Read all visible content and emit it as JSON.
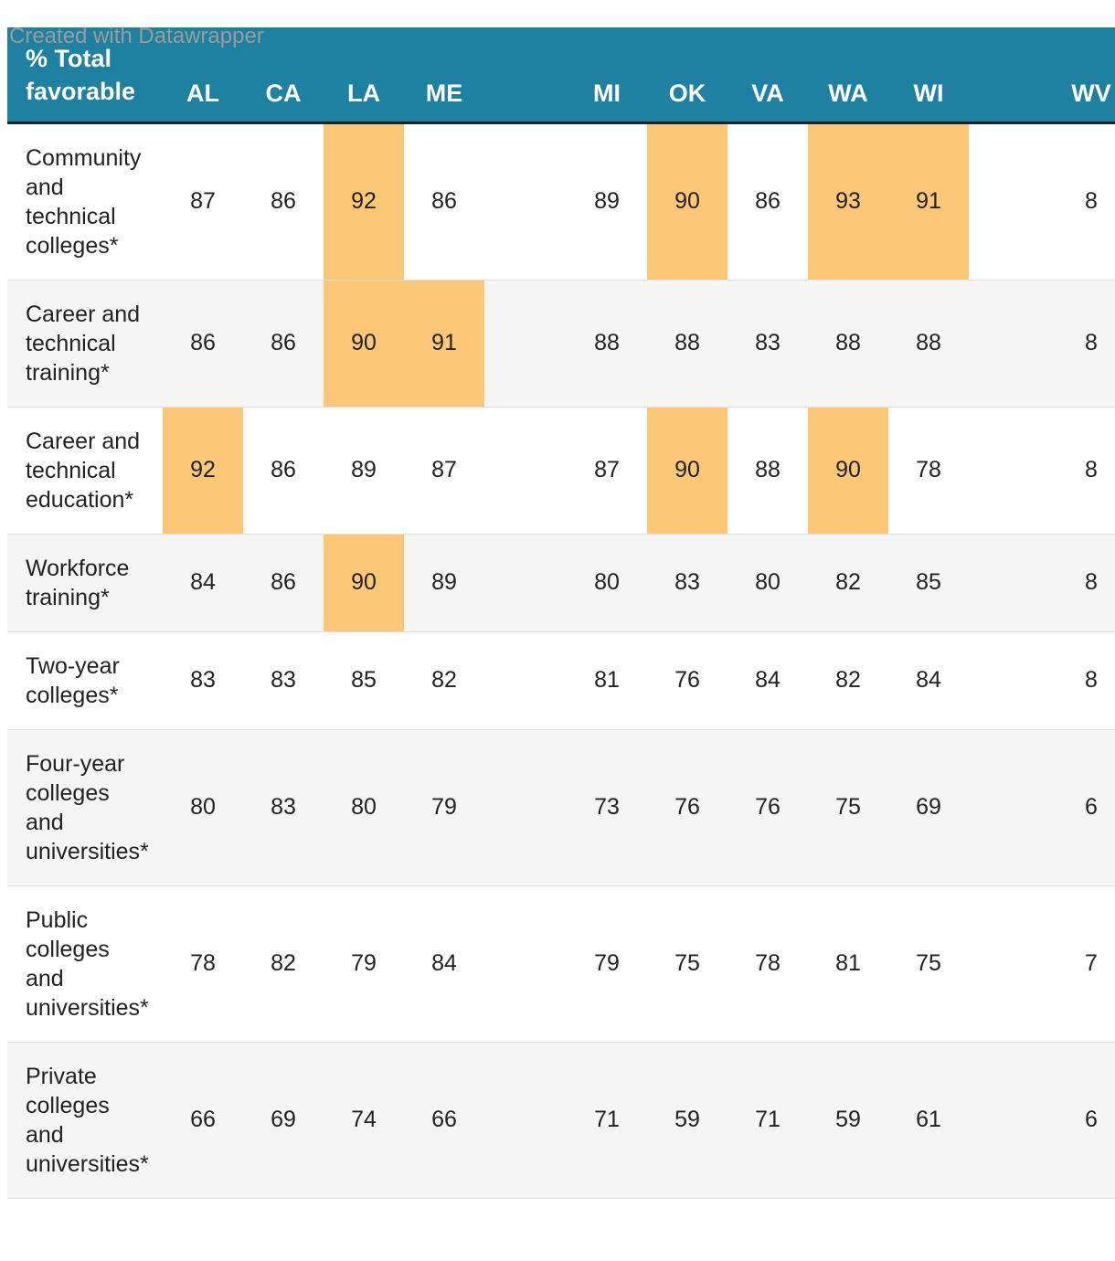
{
  "colors": {
    "header_bg": "#1f81a1",
    "header_text": "#ffffff",
    "header_border": "#222222",
    "highlight": "#fcc878",
    "stripe": "#f5f5f5",
    "row_bg": "#ffffff",
    "row_border": "#e0e0e0",
    "body_text": "#222222",
    "footer_text": "#9b9b9b"
  },
  "header": {
    "title": "% Total favorable",
    "title_display": "% Total\nfavorable"
  },
  "chart_data": {
    "type": "table",
    "title": "% Total favorable",
    "columns": [
      "AL",
      "CA",
      "LA",
      "ME",
      "MI",
      "OK",
      "VA",
      "WA",
      "WI",
      "WV"
    ],
    "last_column_partially_cut_off": true,
    "highlight_color": "#fcc878",
    "rows": [
      {
        "label": "Community and technical colleges*",
        "label_display": "Community\nand\ntechnical\ncolleges*",
        "values": [
          87,
          86,
          92,
          86,
          89,
          90,
          86,
          93,
          91,
          "8"
        ],
        "highlights": [
          2,
          5,
          7,
          8
        ]
      },
      {
        "label": "Career and technical training*",
        "label_display": "Career and\ntechnical\ntraining*",
        "values": [
          86,
          86,
          90,
          91,
          88,
          88,
          83,
          88,
          88,
          "8"
        ],
        "highlights": [
          2,
          3
        ]
      },
      {
        "label": "Career and technical education*",
        "label_display": "Career and\ntechnical\neducation*",
        "values": [
          92,
          86,
          89,
          87,
          87,
          90,
          88,
          90,
          78,
          "8"
        ],
        "highlights": [
          0,
          5,
          7
        ]
      },
      {
        "label": "Workforce training*",
        "label_display": "Workforce\ntraining*",
        "values": [
          84,
          86,
          90,
          89,
          80,
          83,
          80,
          82,
          85,
          "8"
        ],
        "highlights": [
          2
        ]
      },
      {
        "label": "Two-year colleges*",
        "label_display": "Two-year\ncolleges*",
        "values": [
          83,
          83,
          85,
          82,
          81,
          76,
          84,
          82,
          84,
          "8"
        ],
        "highlights": []
      },
      {
        "label": "Four-year colleges and universities*",
        "label_display": "Four-year\ncolleges\nand\nuniversities*",
        "values": [
          80,
          83,
          80,
          79,
          73,
          76,
          76,
          75,
          69,
          "6"
        ],
        "highlights": []
      },
      {
        "label": "Public colleges and universities*",
        "label_display": "Public\ncolleges\nand\nuniversities*",
        "values": [
          78,
          82,
          79,
          84,
          79,
          75,
          78,
          81,
          75,
          "7"
        ],
        "highlights": []
      },
      {
        "label": "Private colleges and universities*",
        "label_display": "Private\ncolleges\nand\nuniversities*",
        "values": [
          66,
          69,
          74,
          66,
          71,
          59,
          71,
          59,
          61,
          "6"
        ],
        "highlights": []
      }
    ]
  },
  "footer": {
    "credit": "Created with Datawrapper"
  }
}
